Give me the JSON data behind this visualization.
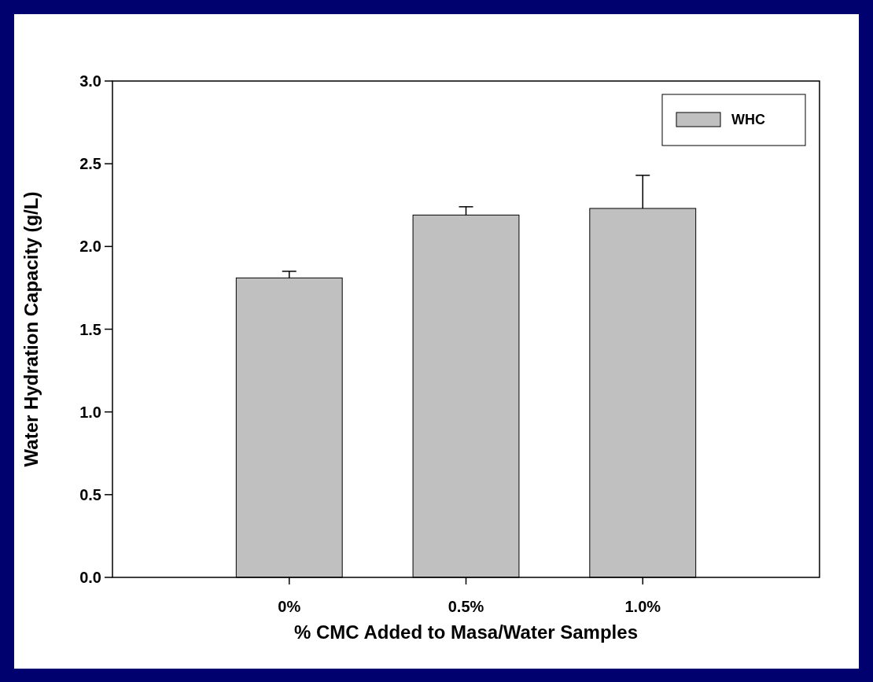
{
  "chart_data": {
    "type": "bar",
    "xlabel": "% CMC Added to Masa/Water Samples",
    "ylabel": "Water Hydration Capacity (g/L)",
    "categories": [
      "0%",
      "0.5%",
      "1.0%"
    ],
    "series": [
      {
        "name": "WHC",
        "color": "#c0c0c0",
        "values": [
          1.81,
          2.19,
          2.23
        ],
        "errors": [
          0.04,
          0.05,
          0.2
        ]
      }
    ],
    "ylim": [
      0,
      3
    ],
    "yticks": [
      {
        "value": 0,
        "label": "0.0"
      },
      {
        "value": 0.5,
        "label": "0.5"
      },
      {
        "value": 1,
        "label": "1.0"
      },
      {
        "value": 1.5,
        "label": "1.5"
      },
      {
        "value": 2,
        "label": "2.0"
      },
      {
        "value": 2.5,
        "label": "2.5"
      },
      {
        "value": 3,
        "label": "3.0"
      }
    ],
    "grid": false,
    "legend": "top right"
  }
}
